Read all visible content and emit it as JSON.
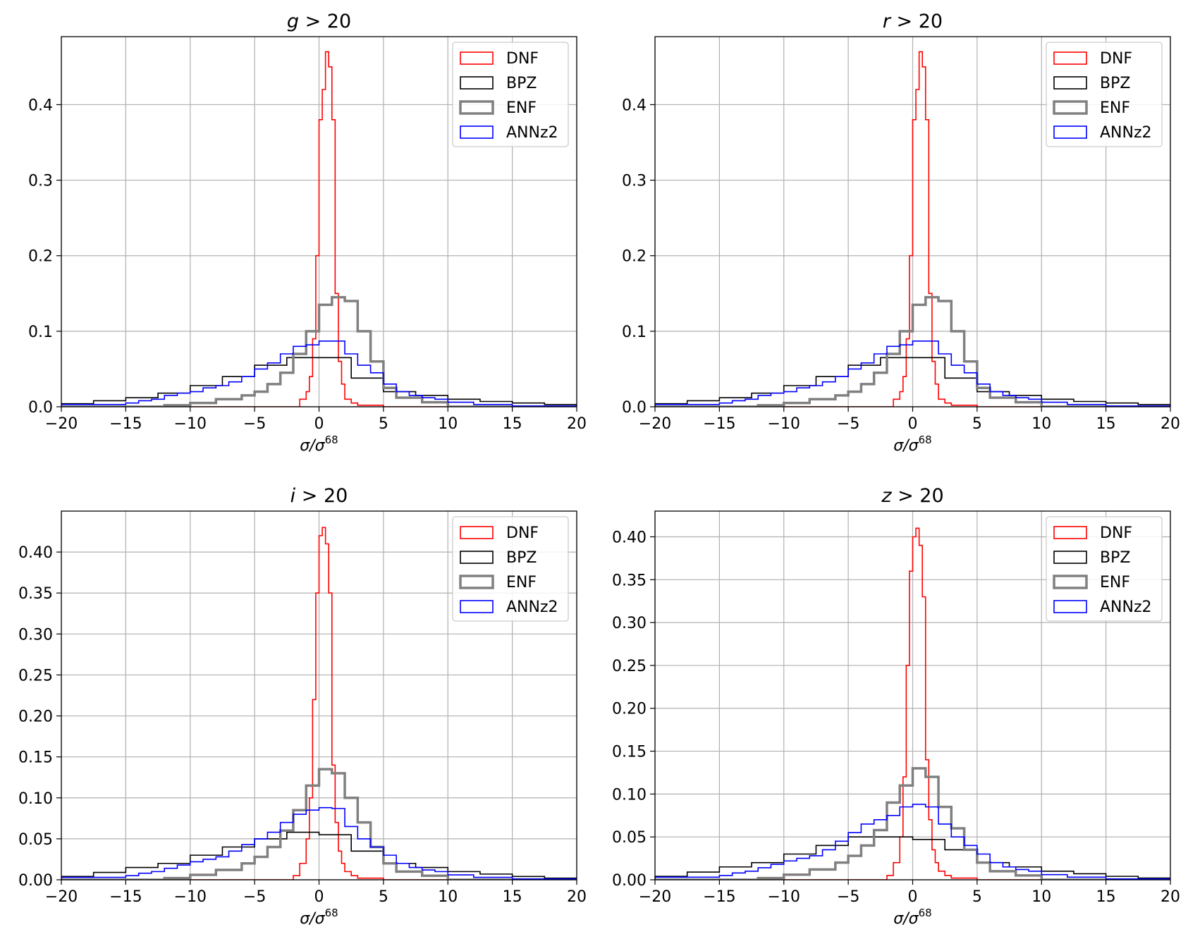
{
  "chart_data": [
    {
      "type": "histogram",
      "title": "g > 20",
      "title_var": "g",
      "title_rest": " > 20",
      "xlabel": "σ/σ68",
      "xlabel_main": "σ/σ",
      "xlabel_sup": "68",
      "xlim": [
        -20,
        20
      ],
      "ylim": [
        0,
        0.49
      ],
      "xticks": [
        -20,
        -15,
        -10,
        -5,
        0,
        5,
        10,
        15,
        20
      ],
      "xtick_labels": [
        "−20",
        "−15",
        "−10",
        "−5",
        "0",
        "5",
        "10",
        "15",
        "20"
      ],
      "yticks": [
        0.0,
        0.1,
        0.2,
        0.3,
        0.4
      ],
      "ytick_labels": [
        "0.0",
        "0.1",
        "0.2",
        "0.3",
        "0.4"
      ],
      "grid": true,
      "legend": "top-right",
      "series": [
        {
          "name": "DNF",
          "color": "#ff0000",
          "width": 1.6,
          "edges": [
            -20,
            -1.5,
            -1,
            -0.75,
            -0.5,
            -0.25,
            0,
            0.25,
            0.5,
            0.75,
            1,
            1.25,
            1.5,
            1.75,
            2,
            2.5,
            3,
            5,
            20
          ],
          "values": [
            0,
            0.01,
            0.02,
            0.04,
            0.09,
            0.2,
            0.38,
            0.42,
            0.47,
            0.45,
            0.38,
            0.15,
            0.06,
            0.03,
            0.01,
            0.005,
            0.002,
            0
          ]
        },
        {
          "name": "BPZ",
          "color": "#000000",
          "width": 1.6,
          "edges": [
            -20,
            -17.5,
            -15,
            -12.5,
            -10,
            -7.5,
            -5,
            -2.5,
            0,
            2.5,
            5,
            7.5,
            10,
            12.5,
            15,
            17.5,
            20
          ],
          "values": [
            0.004,
            0.008,
            0.012,
            0.018,
            0.028,
            0.04,
            0.055,
            0.065,
            0.065,
            0.038,
            0.02,
            0.015,
            0.01,
            0.007,
            0.005,
            0.003
          ]
        },
        {
          "name": "ENF",
          "color": "#808080",
          "width": 3.5,
          "edges": [
            -20,
            -12,
            -10,
            -8,
            -6,
            -5,
            -4,
            -3,
            -2,
            -1,
            0,
            1,
            2,
            3,
            4,
            5,
            6,
            8,
            10,
            20
          ],
          "values": [
            0,
            0.002,
            0.005,
            0.01,
            0.015,
            0.02,
            0.03,
            0.045,
            0.07,
            0.1,
            0.135,
            0.145,
            0.14,
            0.1,
            0.06,
            0.025,
            0.012,
            0.006,
            0
          ]
        },
        {
          "name": "ANNz2",
          "color": "#0000ff",
          "width": 1.6,
          "edges": [
            -20,
            -15,
            -14,
            -13,
            -12,
            -11,
            -10,
            -9,
            -8,
            -7,
            -6,
            -5,
            -4,
            -3,
            -2,
            -1,
            0,
            1,
            2,
            3,
            4,
            5,
            6,
            7,
            8,
            9,
            10,
            12,
            15,
            20
          ],
          "values": [
            0.003,
            0.005,
            0.008,
            0.01,
            0.015,
            0.018,
            0.02,
            0.025,
            0.028,
            0.033,
            0.04,
            0.05,
            0.058,
            0.07,
            0.08,
            0.082,
            0.087,
            0.087,
            0.07,
            0.055,
            0.045,
            0.03,
            0.02,
            0.015,
            0.012,
            0.01,
            0.006,
            0.003,
            0.001
          ]
        }
      ]
    },
    {
      "type": "histogram",
      "title": "r > 20",
      "title_var": "r",
      "title_rest": " > 20",
      "xlabel": "σ/σ68",
      "xlabel_main": "σ/σ",
      "xlabel_sup": "68",
      "xlim": [
        -20,
        20
      ],
      "ylim": [
        0,
        0.49
      ],
      "xticks": [
        -20,
        -15,
        -10,
        -5,
        0,
        5,
        10,
        15,
        20
      ],
      "xtick_labels": [
        "−20",
        "−15",
        "−10",
        "−5",
        "0",
        "5",
        "10",
        "15",
        "20"
      ],
      "yticks": [
        0.0,
        0.1,
        0.2,
        0.3,
        0.4
      ],
      "ytick_labels": [
        "0.0",
        "0.1",
        "0.2",
        "0.3",
        "0.4"
      ],
      "grid": true,
      "legend": "top-right",
      "series": [
        {
          "name": "DNF",
          "color": "#ff0000",
          "width": 1.6,
          "edges": [
            -20,
            -1.5,
            -1,
            -0.75,
            -0.5,
            -0.25,
            0,
            0.25,
            0.5,
            0.75,
            1,
            1.25,
            1.5,
            1.75,
            2,
            2.5,
            3,
            5,
            20
          ],
          "values": [
            0,
            0.01,
            0.02,
            0.04,
            0.09,
            0.2,
            0.38,
            0.42,
            0.47,
            0.45,
            0.38,
            0.15,
            0.06,
            0.03,
            0.01,
            0.005,
            0.002,
            0
          ]
        },
        {
          "name": "BPZ",
          "color": "#000000",
          "width": 1.6,
          "edges": [
            -20,
            -17.5,
            -15,
            -12.5,
            -10,
            -7.5,
            -5,
            -2.5,
            0,
            2.5,
            5,
            7.5,
            10,
            12.5,
            15,
            17.5,
            20
          ],
          "values": [
            0.004,
            0.008,
            0.012,
            0.018,
            0.028,
            0.04,
            0.055,
            0.065,
            0.065,
            0.038,
            0.02,
            0.015,
            0.01,
            0.007,
            0.005,
            0.003
          ]
        },
        {
          "name": "ENF",
          "color": "#808080",
          "width": 3.5,
          "edges": [
            -20,
            -12,
            -10,
            -8,
            -6,
            -5,
            -4,
            -3,
            -2,
            -1,
            0,
            1,
            2,
            3,
            4,
            5,
            6,
            8,
            10,
            20
          ],
          "values": [
            0,
            0.002,
            0.005,
            0.01,
            0.015,
            0.02,
            0.03,
            0.045,
            0.07,
            0.1,
            0.135,
            0.145,
            0.14,
            0.1,
            0.06,
            0.025,
            0.012,
            0.006,
            0
          ]
        },
        {
          "name": "ANNz2",
          "color": "#0000ff",
          "width": 1.6,
          "edges": [
            -20,
            -15,
            -14,
            -13,
            -12,
            -11,
            -10,
            -9,
            -8,
            -7,
            -6,
            -5,
            -4,
            -3,
            -2,
            -1,
            0,
            1,
            2,
            3,
            4,
            5,
            6,
            7,
            8,
            9,
            10,
            12,
            15,
            20
          ],
          "values": [
            0.003,
            0.005,
            0.008,
            0.01,
            0.015,
            0.018,
            0.02,
            0.025,
            0.028,
            0.033,
            0.04,
            0.05,
            0.058,
            0.07,
            0.08,
            0.082,
            0.087,
            0.087,
            0.07,
            0.055,
            0.045,
            0.03,
            0.02,
            0.015,
            0.012,
            0.01,
            0.006,
            0.003,
            0.001
          ]
        }
      ]
    },
    {
      "type": "histogram",
      "title": "i > 20",
      "title_var": "i",
      "title_rest": " > 20",
      "xlabel": "σ/σ68",
      "xlabel_main": "σ/σ",
      "xlabel_sup": "68",
      "xlim": [
        -20,
        20
      ],
      "ylim": [
        0,
        0.45
      ],
      "xticks": [
        -20,
        -15,
        -10,
        -5,
        0,
        5,
        10,
        15,
        20
      ],
      "xtick_labels": [
        "−20",
        "−15",
        "−10",
        "−5",
        "0",
        "5",
        "10",
        "15",
        "20"
      ],
      "yticks": [
        0.0,
        0.05,
        0.1,
        0.15,
        0.2,
        0.25,
        0.3,
        0.35,
        0.4
      ],
      "ytick_labels": [
        "0.00",
        "0.05",
        "0.10",
        "0.15",
        "0.20",
        "0.25",
        "0.30",
        "0.35",
        "0.40"
      ],
      "grid": true,
      "legend": "top-right",
      "series": [
        {
          "name": "DNF",
          "color": "#ff0000",
          "width": 1.6,
          "edges": [
            -20,
            -2,
            -1.5,
            -1,
            -0.75,
            -0.5,
            -0.25,
            0,
            0.25,
            0.5,
            0.75,
            1,
            1.25,
            1.5,
            1.75,
            2,
            2.5,
            3,
            5,
            20
          ],
          "values": [
            0,
            0.005,
            0.02,
            0.05,
            0.1,
            0.22,
            0.35,
            0.42,
            0.43,
            0.41,
            0.35,
            0.14,
            0.07,
            0.035,
            0.02,
            0.01,
            0.005,
            0.002,
            0
          ]
        },
        {
          "name": "BPZ",
          "color": "#000000",
          "width": 1.6,
          "edges": [
            -20,
            -17.5,
            -15,
            -12.5,
            -10,
            -7.5,
            -5,
            -2.5,
            0,
            2.5,
            5,
            7.5,
            10,
            12.5,
            15,
            17.5,
            20
          ],
          "values": [
            0.004,
            0.009,
            0.015,
            0.02,
            0.03,
            0.04,
            0.05,
            0.058,
            0.055,
            0.035,
            0.02,
            0.015,
            0.01,
            0.007,
            0.004,
            0.002
          ]
        },
        {
          "name": "ENF",
          "color": "#808080",
          "width": 3.5,
          "edges": [
            -20,
            -12,
            -10,
            -8,
            -6,
            -5,
            -4,
            -3,
            -2,
            -1,
            0,
            1,
            2,
            3,
            4,
            5,
            6,
            8,
            10,
            20
          ],
          "values": [
            0,
            0.002,
            0.006,
            0.012,
            0.02,
            0.028,
            0.04,
            0.06,
            0.085,
            0.115,
            0.135,
            0.13,
            0.1,
            0.07,
            0.04,
            0.02,
            0.01,
            0.005,
            0
          ]
        },
        {
          "name": "ANNz2",
          "color": "#0000ff",
          "width": 1.6,
          "edges": [
            -20,
            -15,
            -14,
            -13,
            -12,
            -11,
            -10,
            -9,
            -8,
            -7,
            -6,
            -5,
            -4,
            -3,
            -2,
            -1,
            0,
            1,
            2,
            3,
            4,
            5,
            6,
            7,
            8,
            9,
            10,
            12,
            15,
            20
          ],
          "values": [
            0.003,
            0.005,
            0.008,
            0.01,
            0.014,
            0.018,
            0.022,
            0.025,
            0.028,
            0.035,
            0.043,
            0.05,
            0.058,
            0.07,
            0.08,
            0.085,
            0.088,
            0.087,
            0.065,
            0.05,
            0.04,
            0.03,
            0.02,
            0.015,
            0.012,
            0.01,
            0.006,
            0.003,
            0.001
          ]
        }
      ]
    },
    {
      "type": "histogram",
      "title": "z > 20",
      "title_var": "z",
      "title_rest": " > 20",
      "xlabel": "σ/σ68",
      "xlabel_main": "σ/σ",
      "xlabel_sup": "68",
      "xlim": [
        -20,
        20
      ],
      "ylim": [
        0,
        0.43
      ],
      "xticks": [
        -20,
        -15,
        -10,
        -5,
        0,
        5,
        10,
        15,
        20
      ],
      "xtick_labels": [
        "−20",
        "−15",
        "−10",
        "−5",
        "0",
        "5",
        "10",
        "15",
        "20"
      ],
      "yticks": [
        0.0,
        0.05,
        0.1,
        0.15,
        0.2,
        0.25,
        0.3,
        0.35,
        0.4
      ],
      "ytick_labels": [
        "0.00",
        "0.05",
        "0.10",
        "0.15",
        "0.20",
        "0.25",
        "0.30",
        "0.35",
        "0.40"
      ],
      "grid": true,
      "legend": "top-right",
      "series": [
        {
          "name": "DNF",
          "color": "#ff0000",
          "width": 1.6,
          "edges": [
            -20,
            -2,
            -1.5,
            -1,
            -0.75,
            -0.5,
            -0.25,
            0,
            0.25,
            0.5,
            0.75,
            1,
            1.25,
            1.5,
            1.75,
            2,
            2.5,
            3,
            5,
            20
          ],
          "values": [
            0,
            0.005,
            0.02,
            0.05,
            0.12,
            0.25,
            0.36,
            0.4,
            0.41,
            0.39,
            0.33,
            0.14,
            0.07,
            0.035,
            0.02,
            0.01,
            0.005,
            0.002,
            0
          ]
        },
        {
          "name": "BPZ",
          "color": "#000000",
          "width": 1.6,
          "edges": [
            -20,
            -17.5,
            -15,
            -12.5,
            -10,
            -7.5,
            -5,
            -2.5,
            0,
            2.5,
            5,
            7.5,
            10,
            12.5,
            15,
            17.5,
            20
          ],
          "values": [
            0.004,
            0.009,
            0.015,
            0.02,
            0.03,
            0.04,
            0.05,
            0.05,
            0.047,
            0.035,
            0.02,
            0.015,
            0.01,
            0.007,
            0.004,
            0.002
          ]
        },
        {
          "name": "ENF",
          "color": "#808080",
          "width": 3.5,
          "edges": [
            -20,
            -12,
            -10,
            -8,
            -6,
            -5,
            -4,
            -3,
            -2,
            -1,
            0,
            1,
            2,
            3,
            4,
            5,
            6,
            8,
            10,
            20
          ],
          "values": [
            0,
            0.002,
            0.006,
            0.012,
            0.02,
            0.028,
            0.04,
            0.058,
            0.09,
            0.11,
            0.13,
            0.12,
            0.085,
            0.06,
            0.035,
            0.02,
            0.01,
            0.005,
            0
          ]
        },
        {
          "name": "ANNz2",
          "color": "#0000ff",
          "width": 1.6,
          "edges": [
            -20,
            -15,
            -14,
            -13,
            -12,
            -11,
            -10,
            -9,
            -8,
            -7,
            -6,
            -5,
            -4,
            -3,
            -2,
            -1,
            0,
            1,
            2,
            3,
            4,
            5,
            6,
            7,
            8,
            9,
            10,
            12,
            15,
            20
          ],
          "values": [
            0.003,
            0.005,
            0.008,
            0.01,
            0.014,
            0.018,
            0.022,
            0.025,
            0.028,
            0.035,
            0.045,
            0.055,
            0.065,
            0.07,
            0.075,
            0.085,
            0.088,
            0.085,
            0.065,
            0.05,
            0.04,
            0.03,
            0.02,
            0.015,
            0.012,
            0.01,
            0.006,
            0.003,
            0.001
          ]
        }
      ]
    }
  ]
}
